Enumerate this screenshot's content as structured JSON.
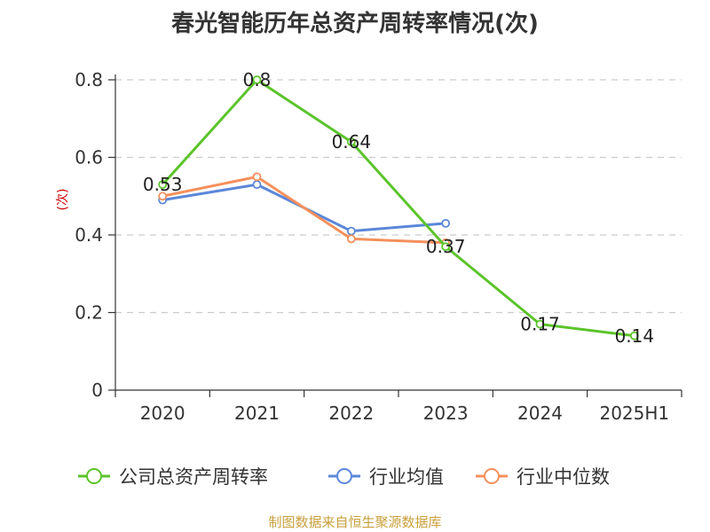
{
  "title": "春光智能历年总资产周转率情况(次)",
  "source": "制图数据来自恒生聚源数据库",
  "chart_data": {
    "type": "line",
    "title": "春光智能历年总资产周转率情况(次)",
    "ylabel": "(次)",
    "xlabel": "",
    "categories": [
      "2020",
      "2021",
      "2022",
      "2023",
      "2024",
      "2025H1"
    ],
    "ylim": [
      0,
      0.8
    ],
    "yticks": [
      "0",
      "0.2",
      "0.4",
      "0.6",
      "0.8"
    ],
    "grid": true,
    "legend_position": "bottom",
    "series": [
      {
        "name": "公司总资产周转率",
        "color": "#5bc42a",
        "values": [
          0.53,
          0.8,
          0.64,
          0.37,
          0.17,
          0.14
        ],
        "labels": [
          "0.53",
          "0.8",
          "0.64",
          "0.37",
          "0.17",
          "0.14"
        ]
      },
      {
        "name": "行业均值",
        "color": "#5b87d9",
        "values": [
          0.49,
          0.53,
          0.41,
          0.43,
          null,
          null
        ]
      },
      {
        "name": "行业中位数",
        "color": "#f5905c",
        "values": [
          0.5,
          0.55,
          0.39,
          0.38,
          null,
          null
        ]
      }
    ]
  }
}
